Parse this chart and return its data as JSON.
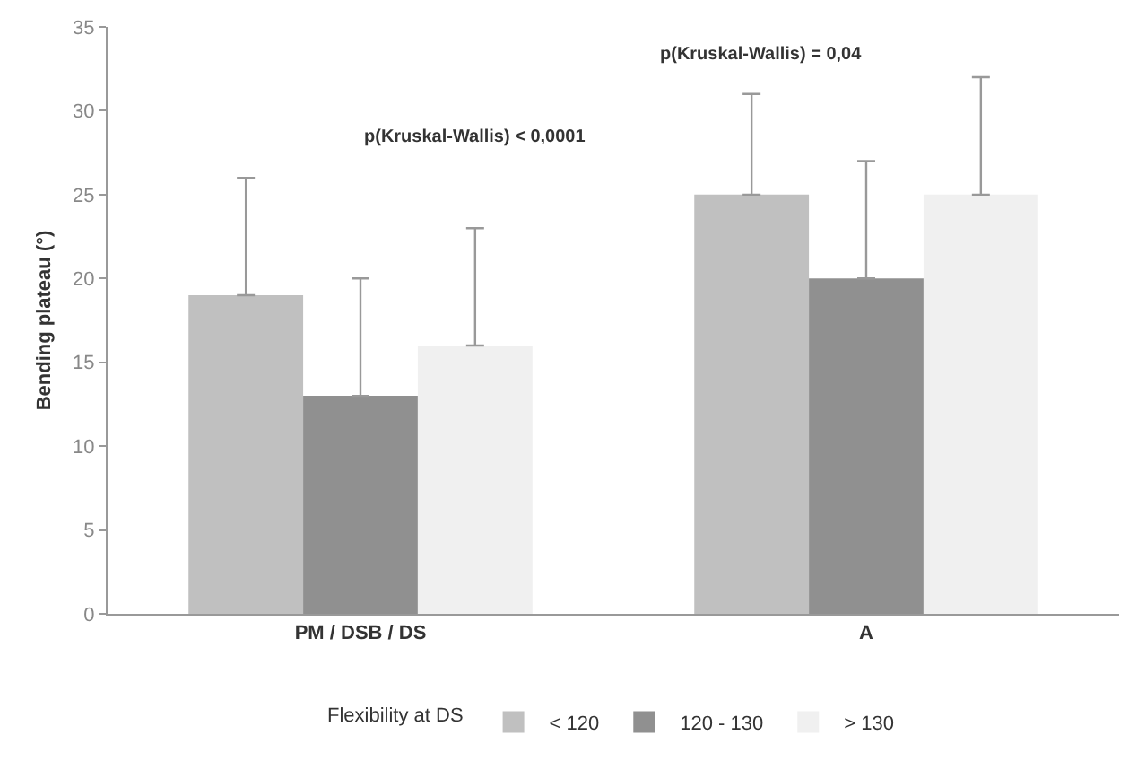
{
  "chart_data": {
    "type": "bar",
    "ylabel": "Bending plateau (°)",
    "legend_title": "Flexibility at DS",
    "categories": [
      "PM / DSB / DS",
      "A"
    ],
    "series": [
      {
        "name": "< 120",
        "color": "#c0c0c0",
        "values": [
          19,
          25
        ],
        "errors": [
          [
            19,
            26
          ],
          [
            25,
            31
          ]
        ]
      },
      {
        "name": "120 - 130",
        "color": "#909090",
        "values": [
          13,
          20
        ],
        "errors": [
          [
            13,
            20
          ],
          [
            20,
            27
          ]
        ]
      },
      {
        "name": "> 130",
        "color": "#f0f0f0",
        "values": [
          16,
          25
        ],
        "errors": [
          [
            16,
            23
          ],
          [
            25,
            32
          ]
        ]
      }
    ],
    "ylim": [
      0,
      35
    ],
    "yticks": [
      0,
      5,
      10,
      15,
      20,
      25,
      30,
      35
    ],
    "grid": false,
    "legend": "bottom",
    "annotations": [
      "p(Kruskal-Wallis) < 0,0001",
      "p(Kruskal-Wallis) = 0,04"
    ]
  }
}
